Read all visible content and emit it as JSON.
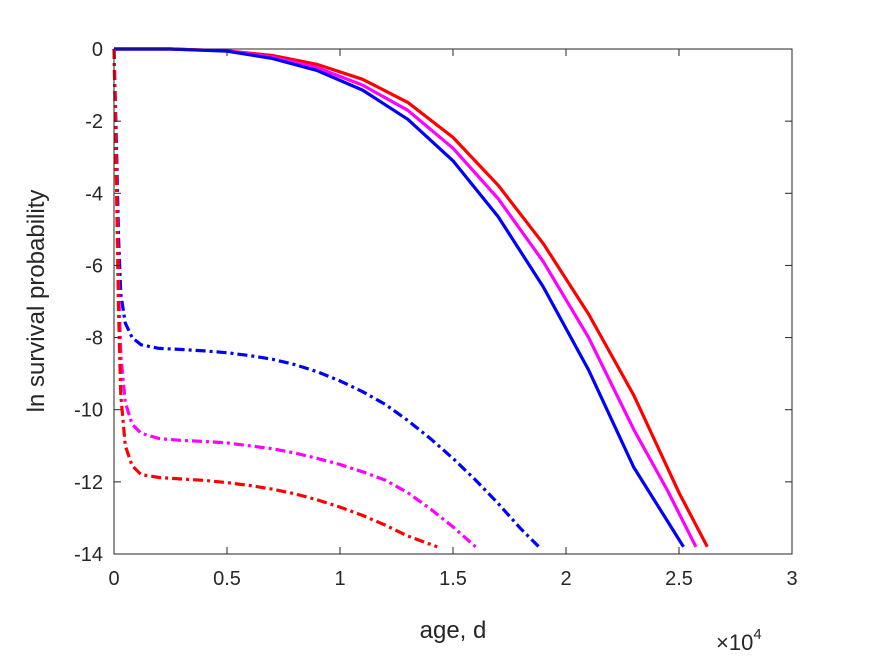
{
  "chart_data": {
    "type": "line",
    "title": "",
    "xlabel": "age, d",
    "ylabel": "ln survival probability",
    "x_multiplier_base": "×10",
    "x_multiplier_exponent": "4",
    "xlim": [
      0,
      30000
    ],
    "ylim": [
      -14,
      0
    ],
    "x_ticks": [
      0,
      5000,
      10000,
      15000,
      20000,
      25000,
      30000
    ],
    "x_tick_labels": [
      "0",
      "0.5",
      "1",
      "1.5",
      "2",
      "2.5",
      "3"
    ],
    "y_ticks": [
      0,
      -2,
      -4,
      -6,
      -8,
      -10,
      -12,
      -14
    ],
    "y_tick_labels": [
      "0",
      "-2",
      "-4",
      "-6",
      "-8",
      "-10",
      "-12",
      "-14"
    ],
    "grid": false,
    "legend": "none",
    "series": [
      {
        "color": "#ff0000",
        "style": "solid",
        "x": [
          0,
          2500,
          5000,
          7000,
          9000,
          11000,
          13000,
          15000,
          17000,
          19000,
          21000,
          23000,
          25000,
          26250
        ],
        "y": [
          0,
          0,
          -0.05,
          -0.18,
          -0.43,
          -0.84,
          -1.48,
          -2.45,
          -3.78,
          -5.4,
          -7.35,
          -9.6,
          -12.3,
          -13.8
        ]
      },
      {
        "color": "#ff00ff",
        "style": "solid",
        "x": [
          0,
          2500,
          5000,
          7000,
          9000,
          11000,
          13000,
          15000,
          17000,
          19000,
          21000,
          23000,
          24500,
          25750
        ],
        "y": [
          0,
          0,
          -0.05,
          -0.22,
          -0.52,
          -1.0,
          -1.7,
          -2.75,
          -4.15,
          -5.9,
          -8.0,
          -10.55,
          -12.25,
          -13.8
        ]
      },
      {
        "color": "#0000ff",
        "style": "solid",
        "x": [
          0,
          2500,
          5000,
          7000,
          9000,
          11000,
          13000,
          15000,
          17000,
          19000,
          21000,
          23000,
          24500,
          25200
        ],
        "y": [
          0,
          0,
          -0.06,
          -0.26,
          -0.6,
          -1.14,
          -1.95,
          -3.1,
          -4.65,
          -6.6,
          -8.9,
          -11.6,
          -13.1,
          -13.8
        ]
      },
      {
        "color": "#0000ff",
        "style": "dashdot",
        "x": [
          0,
          100,
          200,
          300,
          500,
          800,
          1200,
          2000,
          3000,
          4000,
          5000,
          6000,
          7000,
          8000,
          9000,
          10000,
          11000,
          12000,
          13000,
          14000,
          15000,
          16000,
          17000,
          18000,
          18800
        ],
        "y": [
          0,
          -2.5,
          -5.2,
          -6.8,
          -7.6,
          -8.0,
          -8.2,
          -8.3,
          -8.33,
          -8.37,
          -8.42,
          -8.5,
          -8.6,
          -8.75,
          -8.95,
          -9.2,
          -9.5,
          -9.85,
          -10.3,
          -10.8,
          -11.35,
          -11.95,
          -12.6,
          -13.3,
          -13.8
        ]
      },
      {
        "color": "#ff00ff",
        "style": "dashdot",
        "x": [
          0,
          100,
          200,
          300,
          500,
          800,
          1200,
          2000,
          3000,
          4000,
          5000,
          6000,
          7000,
          8000,
          9000,
          10000,
          11000,
          12000,
          13000,
          14000,
          15000,
          16000
        ],
        "y": [
          0,
          -3.2,
          -6.5,
          -8.5,
          -9.8,
          -10.4,
          -10.65,
          -10.8,
          -10.85,
          -10.88,
          -10.92,
          -11.0,
          -11.08,
          -11.2,
          -11.35,
          -11.52,
          -11.72,
          -11.95,
          -12.3,
          -12.75,
          -13.25,
          -13.8
        ]
      },
      {
        "color": "#ff0000",
        "style": "dashdot",
        "x": [
          0,
          100,
          200,
          300,
          500,
          800,
          1200,
          2000,
          3000,
          4000,
          5000,
          6000,
          7000,
          8000,
          9000,
          10000,
          11000,
          12000,
          13000,
          14300
        ],
        "y": [
          0,
          -3.5,
          -7.2,
          -9.6,
          -11.0,
          -11.55,
          -11.8,
          -11.88,
          -11.92,
          -11.96,
          -12.02,
          -12.1,
          -12.2,
          -12.33,
          -12.5,
          -12.7,
          -12.93,
          -13.2,
          -13.5,
          -13.8
        ]
      }
    ]
  }
}
